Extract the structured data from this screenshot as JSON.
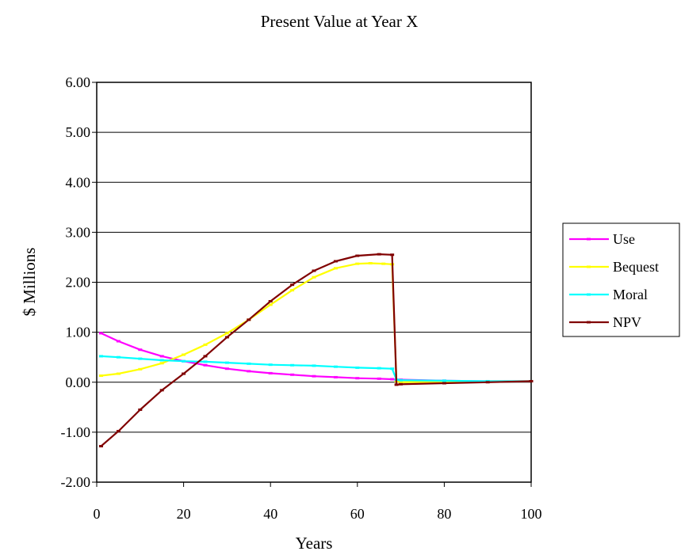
{
  "chart_data": {
    "type": "line",
    "title": "Present Value at Year X",
    "xlabel": "Years",
    "ylabel": "$ Millions",
    "xlim": [
      0,
      100
    ],
    "ylim": [
      -2,
      6
    ],
    "x_ticks": [
      "0",
      "20",
      "40",
      "60",
      "80",
      "100"
    ],
    "y_ticks": [
      "-2.00",
      "-1.00",
      "0.00",
      "1.00",
      "2.00",
      "3.00",
      "4.00",
      "5.00",
      "6.00"
    ],
    "grid": "horizontal",
    "legend_position": "right",
    "series": [
      {
        "name": "Use",
        "color": "#ff00ff",
        "points": [
          [
            1,
            0.98
          ],
          [
            5,
            0.82
          ],
          [
            10,
            0.65
          ],
          [
            15,
            0.52
          ],
          [
            20,
            0.42
          ],
          [
            25,
            0.34
          ],
          [
            30,
            0.27
          ],
          [
            35,
            0.22
          ],
          [
            40,
            0.18
          ],
          [
            45,
            0.15
          ],
          [
            50,
            0.12
          ],
          [
            55,
            0.1
          ],
          [
            60,
            0.08
          ],
          [
            65,
            0.07
          ],
          [
            68,
            0.06
          ],
          [
            69,
            0.05
          ],
          [
            70,
            0.05
          ],
          [
            80,
            0.03
          ],
          [
            90,
            0.02
          ],
          [
            100,
            0.02
          ]
        ]
      },
      {
        "name": "Bequest",
        "color": "#ffff00",
        "points": [
          [
            1,
            0.13
          ],
          [
            5,
            0.17
          ],
          [
            10,
            0.26
          ],
          [
            15,
            0.38
          ],
          [
            20,
            0.55
          ],
          [
            25,
            0.75
          ],
          [
            30,
            0.98
          ],
          [
            35,
            1.25
          ],
          [
            40,
            1.55
          ],
          [
            45,
            1.84
          ],
          [
            50,
            2.1
          ],
          [
            55,
            2.28
          ],
          [
            60,
            2.37
          ],
          [
            63,
            2.38
          ],
          [
            66,
            2.37
          ],
          [
            68,
            2.36
          ],
          [
            69,
            0.02
          ],
          [
            70,
            0.0
          ],
          [
            80,
            0.01
          ],
          [
            90,
            0.02
          ],
          [
            100,
            0.02
          ]
        ]
      },
      {
        "name": "Moral",
        "color": "#00ffff",
        "points": [
          [
            1,
            0.52
          ],
          [
            5,
            0.5
          ],
          [
            10,
            0.47
          ],
          [
            15,
            0.44
          ],
          [
            20,
            0.42
          ],
          [
            25,
            0.41
          ],
          [
            30,
            0.39
          ],
          [
            35,
            0.37
          ],
          [
            40,
            0.35
          ],
          [
            45,
            0.34
          ],
          [
            50,
            0.33
          ],
          [
            55,
            0.31
          ],
          [
            60,
            0.29
          ],
          [
            65,
            0.28
          ],
          [
            68,
            0.27
          ],
          [
            69,
            0.05
          ],
          [
            70,
            0.04
          ],
          [
            80,
            0.03
          ],
          [
            90,
            0.02
          ],
          [
            100,
            0.02
          ]
        ]
      },
      {
        "name": "NPV",
        "color": "#800000",
        "points": [
          [
            1,
            -1.28
          ],
          [
            5,
            -0.98
          ],
          [
            10,
            -0.55
          ],
          [
            15,
            -0.16
          ],
          [
            20,
            0.17
          ],
          [
            25,
            0.52
          ],
          [
            30,
            0.9
          ],
          [
            35,
            1.25
          ],
          [
            40,
            1.62
          ],
          [
            45,
            1.95
          ],
          [
            50,
            2.23
          ],
          [
            55,
            2.42
          ],
          [
            60,
            2.53
          ],
          [
            65,
            2.56
          ],
          [
            68,
            2.55
          ],
          [
            69,
            -0.05
          ],
          [
            70,
            -0.04
          ],
          [
            80,
            -0.02
          ],
          [
            90,
            0.0
          ],
          [
            100,
            0.02
          ]
        ]
      }
    ]
  }
}
